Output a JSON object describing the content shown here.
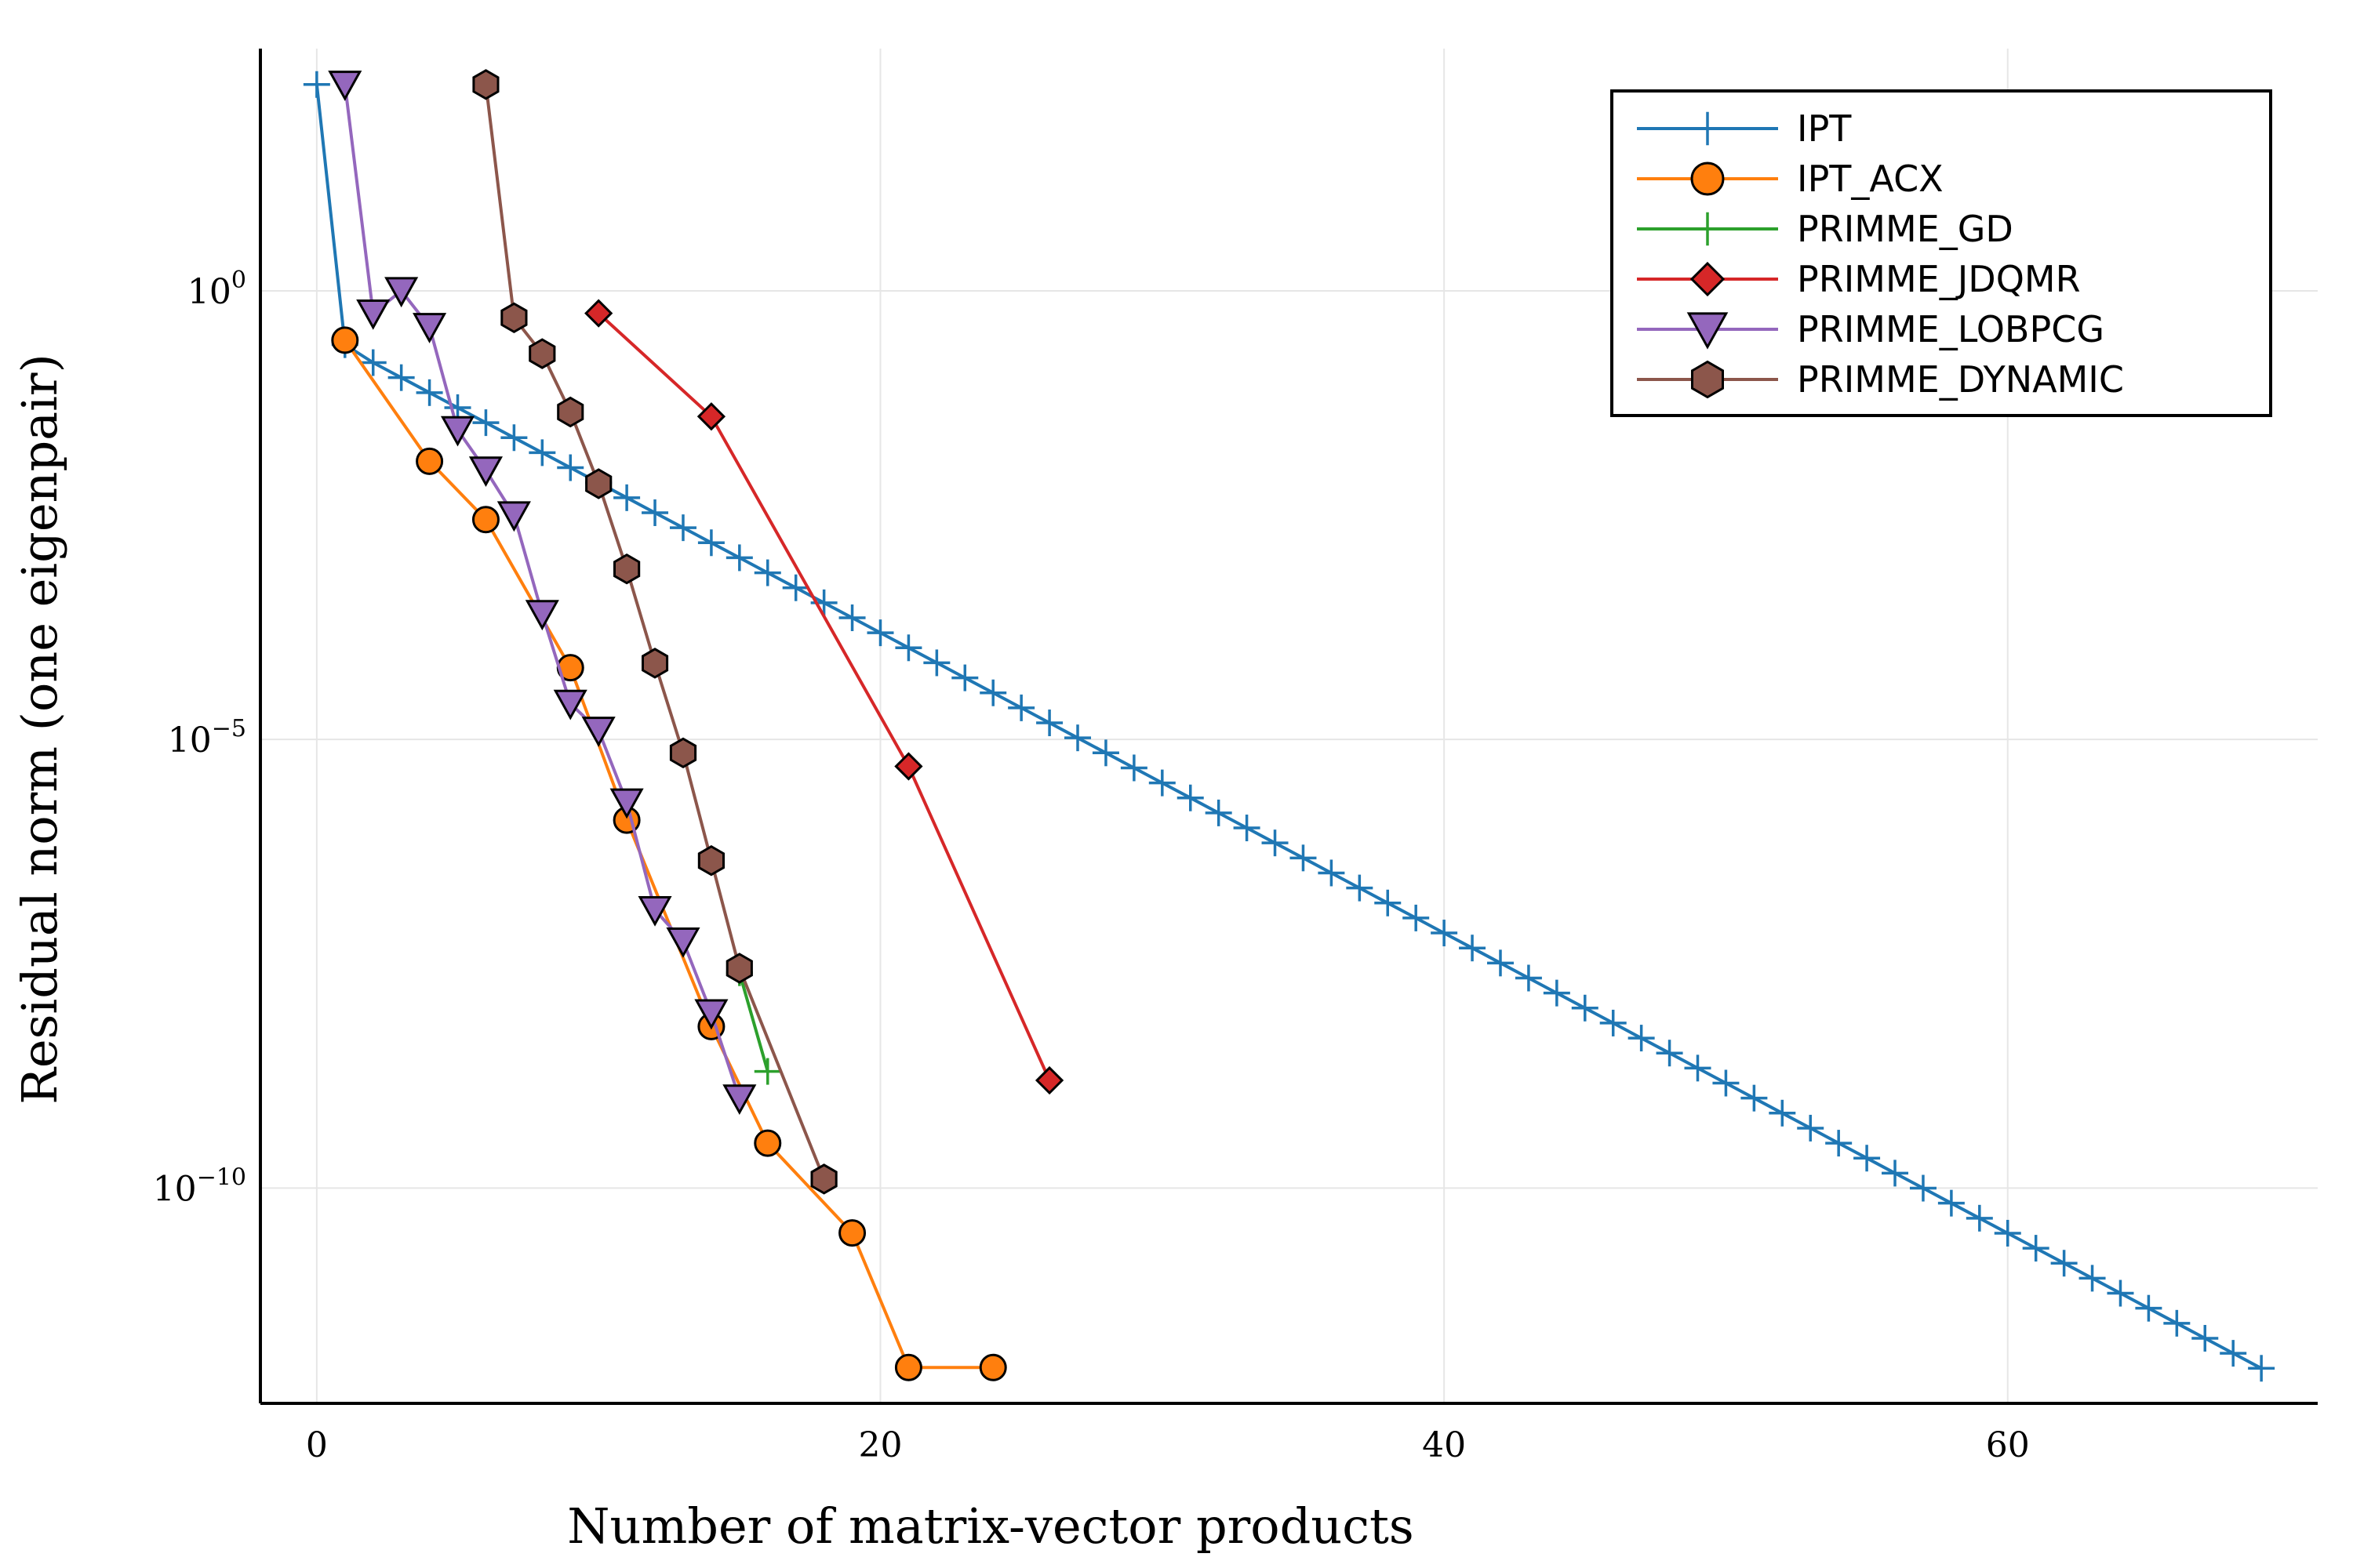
{
  "chart_data": {
    "type": "line",
    "xlabel": "Number of matrix-vector products",
    "ylabel": "Residual norm (one eigenpair)",
    "xlim": [
      -2,
      71
    ],
    "ylim_log10": [
      -12.4,
      2.7
    ],
    "yscale": "log",
    "grid": true,
    "legend_position": "top-right",
    "x_ticks": [
      {
        "value": 0,
        "label": "0"
      },
      {
        "value": 20,
        "label": "20"
      },
      {
        "value": 40,
        "label": "40"
      },
      {
        "value": 60,
        "label": "60"
      }
    ],
    "y_ticks": [
      {
        "log10": 0,
        "base": "10",
        "exp": "0"
      },
      {
        "log10": -5,
        "base": "10",
        "exp": "−5"
      },
      {
        "log10": -10,
        "base": "10",
        "exp": "−10"
      }
    ],
    "series": [
      {
        "name": "IPT",
        "color": "#1f77b4",
        "marker": "plus",
        "log_linear": {
          "start": 2,
          "end": 69,
          "step": 1,
          "y0_log10": -0.8,
          "slope": -0.1673
        },
        "x": [
          0,
          1
        ],
        "log10_y": [
          2.3,
          -0.6
        ]
      },
      {
        "name": "IPT_ACX",
        "color": "#ff7f0e",
        "marker": "circle",
        "x": [
          1,
          4,
          6,
          9,
          11,
          14,
          16,
          19,
          21,
          24
        ],
        "log10_y": [
          -0.55,
          -1.9,
          -2.55,
          -4.2,
          -5.9,
          -8.2,
          -9.5,
          -10.5,
          -12.0,
          -12.0
        ]
      },
      {
        "name": "PRIMME_GD",
        "color": "#2ca02c",
        "marker": "plus",
        "x": [
          15,
          16
        ],
        "log10_y": [
          -7.6,
          -8.7
        ]
      },
      {
        "name": "PRIMME_JDQMR",
        "color": "#d62728",
        "marker": "diamond",
        "x": [
          10,
          14,
          21,
          26
        ],
        "log10_y": [
          -0.25,
          -1.4,
          -5.3,
          -8.8
        ]
      },
      {
        "name": "PRIMME_LOBPCG",
        "color": "#9467bd",
        "marker": "triangle-down",
        "x": [
          1,
          2,
          3,
          4,
          5,
          6,
          7,
          8,
          9,
          10,
          11,
          12,
          13,
          14,
          15
        ],
        "log10_y": [
          2.3,
          -0.25,
          0,
          -0.4,
          -1.55,
          -2.0,
          -2.5,
          -3.6,
          -4.6,
          -4.9,
          -5.7,
          -6.9,
          -7.25,
          -8.05,
          -9.0
        ]
      },
      {
        "name": "PRIMME_DYNAMIC",
        "color": "#8c564b",
        "marker": "hexagon",
        "x": [
          6,
          7,
          8,
          9,
          10,
          11,
          12,
          13,
          14,
          15,
          18
        ],
        "log10_y": [
          2.3,
          -0.3,
          -0.7,
          -1.35,
          -2.15,
          -3.1,
          -4.15,
          -5.15,
          -6.35,
          -7.55,
          -9.9
        ]
      }
    ]
  }
}
